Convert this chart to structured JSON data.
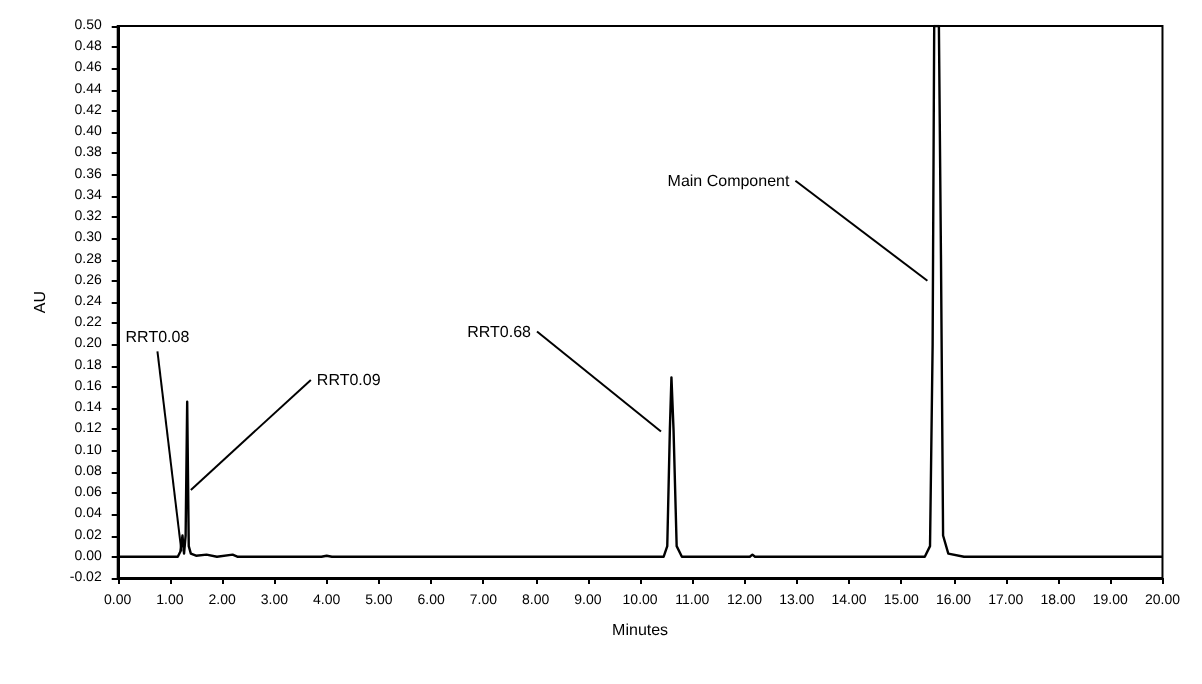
{
  "chart_data": {
    "type": "line",
    "xlabel": "Minutes",
    "ylabel": "AU",
    "x": [
      0,
      1.15,
      1.2,
      1.24,
      1.27,
      1.3,
      1.33,
      1.36,
      1.4,
      1.5,
      1.7,
      1.9,
      2.2,
      2.3,
      3.9,
      4.0,
      4.1,
      10.45,
      10.52,
      10.57,
      10.6,
      10.64,
      10.7,
      10.8,
      12.1,
      12.15,
      12.2,
      15.45,
      15.55,
      15.6,
      15.63,
      15.72,
      15.76,
      15.8,
      15.9,
      16.2,
      20
    ],
    "series": [
      {
        "color": "#000000",
        "values": [
          0,
          0,
          0.005,
          0.02,
          0.003,
          0.02,
          0.146,
          0.01,
          0.003,
          0.001,
          0.002,
          0,
          0.002,
          0,
          0,
          0.001,
          0,
          0,
          0.01,
          0.12,
          0.169,
          0.12,
          0.01,
          0,
          0,
          0.002,
          0,
          0,
          0.01,
          0.2,
          0.5,
          0.5,
          0.28,
          0.02,
          0.003,
          0,
          0
        ]
      }
    ],
    "xlim": [
      0,
      20
    ],
    "xticks": [
      {
        "value": 0,
        "label": "0.00"
      },
      {
        "value": 1,
        "label": "1.00"
      },
      {
        "value": 2,
        "label": "2.00"
      },
      {
        "value": 3,
        "label": "3.00"
      },
      {
        "value": 4,
        "label": "4.00"
      },
      {
        "value": 5,
        "label": "5.00"
      },
      {
        "value": 6,
        "label": "6.00"
      },
      {
        "value": 7,
        "label": "7.00"
      },
      {
        "value": 8,
        "label": "8.00"
      },
      {
        "value": 9,
        "label": "9.00"
      },
      {
        "value": 10,
        "label": "10.00"
      },
      {
        "value": 11,
        "label": "11.00"
      },
      {
        "value": 12,
        "label": "12.00"
      },
      {
        "value": 13,
        "label": "13.00"
      },
      {
        "value": 14,
        "label": "14.00"
      },
      {
        "value": 15,
        "label": "15.00"
      },
      {
        "value": 16,
        "label": "16.00"
      },
      {
        "value": 17,
        "label": "17.00"
      },
      {
        "value": 18,
        "label": "18.00"
      },
      {
        "value": 19,
        "label": "19.00"
      },
      {
        "value": 20,
        "label": "20.00"
      }
    ],
    "ylim": [
      -0.02,
      0.5
    ],
    "yticks": [
      {
        "value": -0.02,
        "label": "-0.02"
      },
      {
        "value": 0,
        "label": "0.00"
      },
      {
        "value": 0.02,
        "label": "0.02"
      },
      {
        "value": 0.04,
        "label": "0.04"
      },
      {
        "value": 0.06,
        "label": "0.06"
      },
      {
        "value": 0.08,
        "label": "0.08"
      },
      {
        "value": 0.1,
        "label": "0.10"
      },
      {
        "value": 0.12,
        "label": "0.12"
      },
      {
        "value": 0.14,
        "label": "0.14"
      },
      {
        "value": 0.16,
        "label": "0.16"
      },
      {
        "value": 0.18,
        "label": "0.18"
      },
      {
        "value": 0.2,
        "label": "0.20"
      },
      {
        "value": 0.22,
        "label": "0.22"
      },
      {
        "value": 0.24,
        "label": "0.24"
      },
      {
        "value": 0.26,
        "label": "0.26"
      },
      {
        "value": 0.28,
        "label": "0.28"
      },
      {
        "value": 0.3,
        "label": "0.30"
      },
      {
        "value": 0.32,
        "label": "0.32"
      },
      {
        "value": 0.34,
        "label": "0.34"
      },
      {
        "value": 0.36,
        "label": "0.36"
      },
      {
        "value": 0.38,
        "label": "0.38"
      },
      {
        "value": 0.4,
        "label": "0.40"
      },
      {
        "value": 0.42,
        "label": "0.42"
      },
      {
        "value": 0.44,
        "label": "0.44"
      },
      {
        "value": 0.46,
        "label": "0.46"
      },
      {
        "value": 0.48,
        "label": "0.48"
      },
      {
        "value": 0.5,
        "label": "0.50"
      }
    ],
    "annotations": [
      {
        "text": "RRT0.08",
        "x": 1.22,
        "y": 0.005
      },
      {
        "text": "RRT0.09",
        "x": 1.4,
        "y": 0.063
      },
      {
        "text": "RRT0.68",
        "x": 10.4,
        "y": 0.118
      },
      {
        "text": "Main Component",
        "x": 15.5,
        "y": 0.26
      }
    ],
    "grid": false,
    "marker": "none",
    "line_style": "solid"
  }
}
